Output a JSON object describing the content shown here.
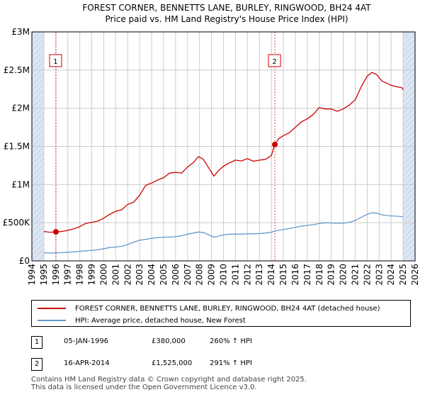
{
  "title_line1": "FOREST CORNER, BENNETTS LANE, BURLEY, RINGWOOD, BH24 4AT",
  "title_line2": "Price paid vs. HM Land Registry's House Price Index (HPI)",
  "colors": {
    "property": "#cc0000",
    "hpi": "#6699cc",
    "marker": "#cc0000",
    "sale_line": "#cc0000",
    "shade": "#dde6f3"
  },
  "legend": {
    "property_label": "FOREST CORNER, BENNETTS LANE, BURLEY, RINGWOOD, BH24 4AT (detached house)",
    "hpi_label": "HPI: Average price, detached house, New Forest"
  },
  "sales": [
    {
      "num": "1",
      "date": "05-JAN-1996",
      "price": "£380,000",
      "hpi_change": "260% ↑ HPI"
    },
    {
      "num": "2",
      "date": "16-APR-2014",
      "price": "£1,525,000",
      "hpi_change": "291% ↑ HPI"
    }
  ],
  "footer_line1": "Contains HM Land Registry data © Crown copyright and database right 2025.",
  "footer_line2": "This data is licensed under the Open Government Licence v3.0.",
  "chart_data": {
    "type": "line",
    "title": "FOREST CORNER, BENNETTS LANE, BURLEY, RINGWOOD, BH24 4AT",
    "subtitle": "Price paid vs. HM Land Registry's House Price Index (HPI)",
    "xlim": [
      1994,
      2026
    ],
    "ylim": [
      0,
      3000000
    ],
    "x_ticks": [
      "1994",
      "1995",
      "1996",
      "1997",
      "1998",
      "1999",
      "2000",
      "2001",
      "2002",
      "2003",
      "2004",
      "2005",
      "2006",
      "2007",
      "2008",
      "2009",
      "2010",
      "2011",
      "2012",
      "2013",
      "2014",
      "2015",
      "2016",
      "2017",
      "2018",
      "2019",
      "2020",
      "2021",
      "2022",
      "2023",
      "2024",
      "2025",
      "2026"
    ],
    "y_ticks": [
      {
        "value": 0,
        "label": "£0"
      },
      {
        "value": 500000,
        "label": "£500K"
      },
      {
        "value": 1000000,
        "label": "£1M"
      },
      {
        "value": 1500000,
        "label": "£1.5M"
      },
      {
        "value": 2000000,
        "label": "£2M"
      },
      {
        "value": 2500000,
        "label": "£2.5M"
      },
      {
        "value": 3000000,
        "label": "£3M"
      }
    ],
    "data_range": [
      1995.0,
      2025.0
    ],
    "sale_markers": [
      {
        "label": "1",
        "x": 1996.01,
        "y": 380000
      },
      {
        "label": "2",
        "x": 2014.29,
        "y": 1525000
      }
    ],
    "series": [
      {
        "name": "FOREST CORNER, BENNETTS LANE, BURLEY, RINGWOOD, BH24 4AT (detached house)",
        "points": [
          [
            1995.0,
            385000
          ],
          [
            1995.5,
            375000
          ],
          [
            1996.01,
            380000
          ],
          [
            1996.5,
            385000
          ],
          [
            1997.0,
            400000
          ],
          [
            1997.5,
            420000
          ],
          [
            1998.0,
            450000
          ],
          [
            1998.5,
            490000
          ],
          [
            1999.0,
            505000
          ],
          [
            1999.5,
            520000
          ],
          [
            2000.0,
            560000
          ],
          [
            2000.5,
            610000
          ],
          [
            2001.0,
            650000
          ],
          [
            2001.5,
            670000
          ],
          [
            2002.0,
            740000
          ],
          [
            2002.5,
            770000
          ],
          [
            2003.0,
            860000
          ],
          [
            2003.5,
            990000
          ],
          [
            2004.0,
            1020000
          ],
          [
            2004.5,
            1060000
          ],
          [
            2005.0,
            1090000
          ],
          [
            2005.5,
            1150000
          ],
          [
            2006.0,
            1160000
          ],
          [
            2006.5,
            1150000
          ],
          [
            2007.0,
            1230000
          ],
          [
            2007.5,
            1290000
          ],
          [
            2007.9,
            1365000
          ],
          [
            2008.3,
            1335000
          ],
          [
            2008.8,
            1210000
          ],
          [
            2009.2,
            1110000
          ],
          [
            2009.6,
            1185000
          ],
          [
            2010.0,
            1240000
          ],
          [
            2010.5,
            1285000
          ],
          [
            2011.0,
            1320000
          ],
          [
            2011.5,
            1310000
          ],
          [
            2012.0,
            1340000
          ],
          [
            2012.5,
            1305000
          ],
          [
            2013.0,
            1320000
          ],
          [
            2013.5,
            1330000
          ],
          [
            2014.0,
            1380000
          ],
          [
            2014.29,
            1525000
          ],
          [
            2014.6,
            1600000
          ],
          [
            2015.0,
            1640000
          ],
          [
            2015.5,
            1680000
          ],
          [
            2016.0,
            1750000
          ],
          [
            2016.5,
            1820000
          ],
          [
            2017.0,
            1860000
          ],
          [
            2017.5,
            1920000
          ],
          [
            2018.0,
            2010000
          ],
          [
            2018.5,
            1990000
          ],
          [
            2019.0,
            1990000
          ],
          [
            2019.5,
            1960000
          ],
          [
            2020.0,
            1990000
          ],
          [
            2020.5,
            2040000
          ],
          [
            2021.0,
            2110000
          ],
          [
            2021.5,
            2280000
          ],
          [
            2022.0,
            2420000
          ],
          [
            2022.4,
            2470000
          ],
          [
            2022.8,
            2440000
          ],
          [
            2023.2,
            2360000
          ],
          [
            2023.6,
            2330000
          ],
          [
            2024.0,
            2300000
          ],
          [
            2024.5,
            2280000
          ],
          [
            2024.9,
            2270000
          ],
          [
            2025.0,
            2240000
          ]
        ]
      },
      {
        "name": "HPI: Average price, detached house, New Forest",
        "points": [
          [
            1995.0,
            105000
          ],
          [
            1995.5,
            103000
          ],
          [
            1996.0,
            105000
          ],
          [
            1996.5,
            108000
          ],
          [
            1997.0,
            113000
          ],
          [
            1997.5,
            118000
          ],
          [
            1998.0,
            125000
          ],
          [
            1998.5,
            132000
          ],
          [
            1999.0,
            138000
          ],
          [
            1999.5,
            145000
          ],
          [
            2000.0,
            160000
          ],
          [
            2000.5,
            175000
          ],
          [
            2001.0,
            182000
          ],
          [
            2001.5,
            190000
          ],
          [
            2002.0,
            215000
          ],
          [
            2002.5,
            245000
          ],
          [
            2003.0,
            270000
          ],
          [
            2003.5,
            282000
          ],
          [
            2004.0,
            295000
          ],
          [
            2004.5,
            305000
          ],
          [
            2005.0,
            310000
          ],
          [
            2005.5,
            312000
          ],
          [
            2006.0,
            318000
          ],
          [
            2006.5,
            330000
          ],
          [
            2007.0,
            350000
          ],
          [
            2007.5,
            365000
          ],
          [
            2007.9,
            378000
          ],
          [
            2008.3,
            372000
          ],
          [
            2008.8,
            340000
          ],
          [
            2009.2,
            310000
          ],
          [
            2009.6,
            325000
          ],
          [
            2010.0,
            340000
          ],
          [
            2010.5,
            350000
          ],
          [
            2011.0,
            352000
          ],
          [
            2011.5,
            350000
          ],
          [
            2012.0,
            355000
          ],
          [
            2012.5,
            355000
          ],
          [
            2013.0,
            358000
          ],
          [
            2013.5,
            365000
          ],
          [
            2014.0,
            375000
          ],
          [
            2014.29,
            390000
          ],
          [
            2014.6,
            400000
          ],
          [
            2015.0,
            410000
          ],
          [
            2015.5,
            425000
          ],
          [
            2016.0,
            440000
          ],
          [
            2016.5,
            455000
          ],
          [
            2017.0,
            465000
          ],
          [
            2017.5,
            475000
          ],
          [
            2018.0,
            490000
          ],
          [
            2018.5,
            500000
          ],
          [
            2019.0,
            497000
          ],
          [
            2019.5,
            492000
          ],
          [
            2020.0,
            495000
          ],
          [
            2020.5,
            505000
          ],
          [
            2021.0,
            530000
          ],
          [
            2021.5,
            570000
          ],
          [
            2022.0,
            610000
          ],
          [
            2022.4,
            630000
          ],
          [
            2022.8,
            625000
          ],
          [
            2023.2,
            605000
          ],
          [
            2023.6,
            595000
          ],
          [
            2024.0,
            590000
          ],
          [
            2024.5,
            585000
          ],
          [
            2024.9,
            580000
          ],
          [
            2025.0,
            575000
          ]
        ]
      }
    ]
  }
}
